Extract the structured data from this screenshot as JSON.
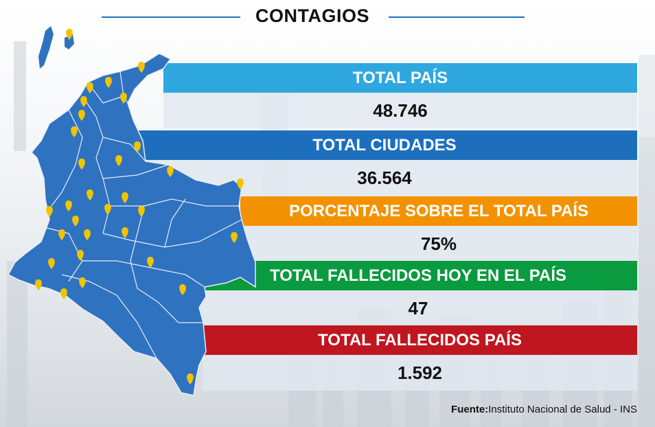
{
  "title": "CONTAGIOS",
  "colors": {
    "map_fill": "#2f72c0",
    "map_stroke": "#e8eef5",
    "pin": "#f1c400",
    "total_pais": "#2ea8df",
    "total_ciudades": "#1d6fbe",
    "porcentaje": "#f39200",
    "fallecidos_hoy": "#0a9a3f",
    "fallecidos_pais": "#c0161f"
  },
  "stats": [
    {
      "label": "TOTAL PAÍS",
      "value": "48.746"
    },
    {
      "label": "TOTAL CIUDADES",
      "value": "36.564"
    },
    {
      "label": "PORCENTAJE SOBRE EL TOTAL PAÍS",
      "value": "75%"
    },
    {
      "label": "TOTAL FALLECIDOS HOY EN EL PAÍS",
      "value": "47"
    },
    {
      "label": "TOTAL FALLECIDOS PAÍS",
      "value": "1.592"
    }
  ],
  "source": {
    "prefix": "Fuente:",
    "text": "Instituto Nacional de Salud - INS"
  },
  "map_icons": [
    "location-pin-icon"
  ]
}
